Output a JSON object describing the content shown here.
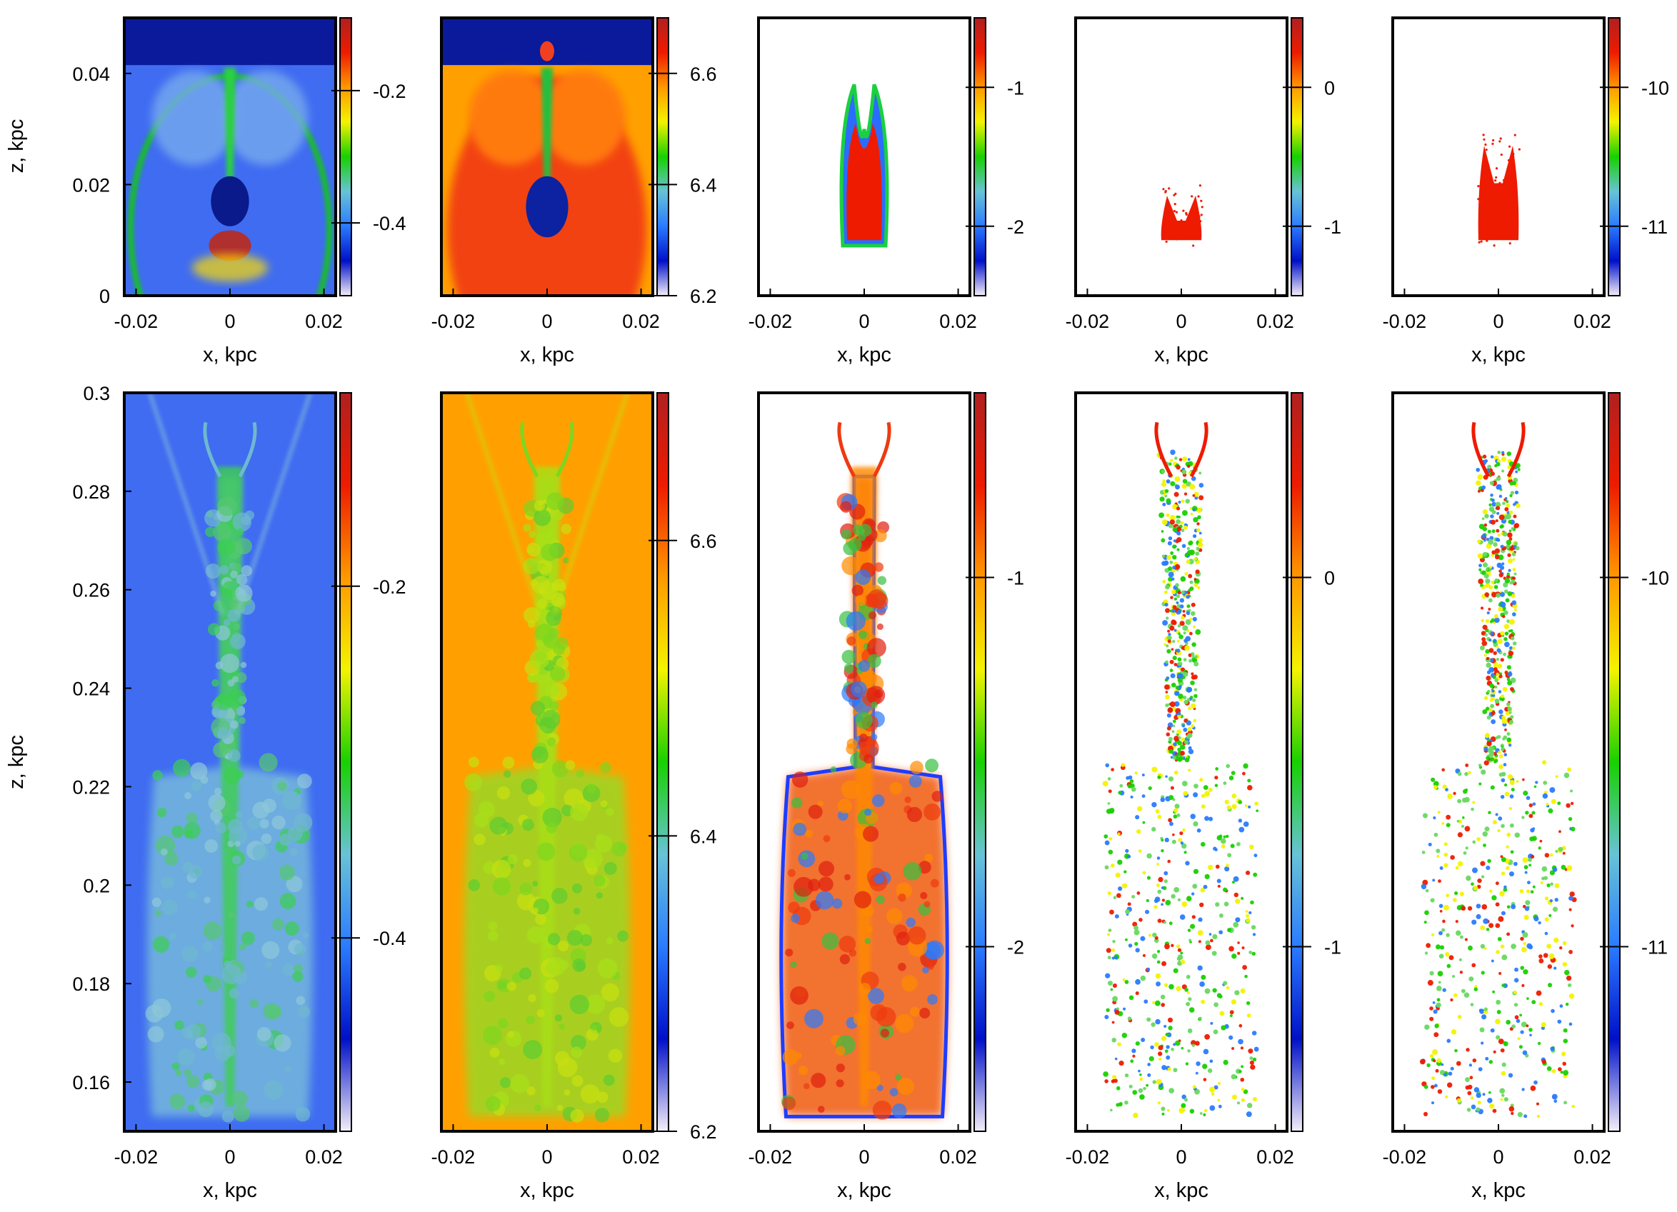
{
  "chart_data": {
    "type": "heatmap",
    "description_layout": "2 rows x 5 columns of 2D color maps",
    "colorbar_palette": [
      "#f4eef8",
      "#0010c8",
      "#2a7bff",
      "#67c3d6",
      "#18d000",
      "#f3f300",
      "#ff9900",
      "#ee1b00",
      "#b02020"
    ],
    "rows": [
      {
        "xlabel": "x, kpc",
        "ylabel": "z, kpc",
        "xticks": [
          "-0.02",
          "0",
          "0.02"
        ],
        "xlim": [
          -0.0225,
          0.0225
        ],
        "ylim": [
          0,
          0.05
        ],
        "yticks": [
          {
            "label": "0",
            "value": 0
          },
          {
            "label": "0.02",
            "value": 0.02
          },
          {
            "label": "0.04",
            "value": 0.04
          }
        ],
        "panels": [
          {
            "field": "panel-1",
            "background": "#3f6cf1",
            "colorbar": {
              "range": [
                -0.51,
                -0.09
              ],
              "ticks": [
                {
                  "label": "-0.2",
                  "value": -0.2
                },
                {
                  "label": "-0.4",
                  "value": -0.4
                }
              ]
            }
          },
          {
            "field": "panel-2",
            "background": "#ffa000",
            "colorbar": {
              "range": [
                6.2,
                6.7
              ],
              "ticks": [
                {
                  "label": "6.6",
                  "value": 6.6
                },
                {
                  "label": "6.4",
                  "value": 6.4
                },
                {
                  "label": "6.2",
                  "value": 6.2
                }
              ]
            }
          },
          {
            "field": "panel-3",
            "background": "#ffffff",
            "colorbar": {
              "range": [
                -2.5,
                -0.5
              ],
              "ticks": [
                {
                  "label": "-1",
                  "value": -1
                },
                {
                  "label": "-2",
                  "value": -2
                }
              ]
            }
          },
          {
            "field": "panel-4",
            "background": "#ffffff",
            "colorbar": {
              "range": [
                -1.5,
                0.5
              ],
              "ticks": [
                {
                  "label": "0",
                  "value": 0
                },
                {
                  "label": "-1",
                  "value": -1
                }
              ]
            }
          },
          {
            "field": "panel-5",
            "background": "#ffffff",
            "colorbar": {
              "range": [
                -11.5,
                -9.5
              ],
              "ticks": [
                {
                  "label": "-10",
                  "value": -10
                },
                {
                  "label": "-11",
                  "value": -11
                }
              ]
            }
          }
        ]
      },
      {
        "xlabel": "x, kpc",
        "ylabel": "z, kpc",
        "xticks": [
          "-0.02",
          "0",
          "0.02"
        ],
        "xlim": [
          -0.0225,
          0.0225
        ],
        "ylim": [
          0.15,
          0.3
        ],
        "yticks": [
          {
            "label": "0.3",
            "value": 0.3
          },
          {
            "label": "0.28",
            "value": 0.28
          },
          {
            "label": "0.26",
            "value": 0.26
          },
          {
            "label": "0.24",
            "value": 0.24
          },
          {
            "label": "0.22",
            "value": 0.22
          },
          {
            "label": "0.2",
            "value": 0.2
          },
          {
            "label": "0.18",
            "value": 0.18
          },
          {
            "label": "0.16",
            "value": 0.16
          }
        ],
        "panels": [
          {
            "field": "panel-1",
            "background": "#3f6cf1",
            "colorbar": {
              "range": [
                -0.51,
                -0.09
              ],
              "ticks": [
                {
                  "label": "-0.2",
                  "value": -0.2
                },
                {
                  "label": "-0.4",
                  "value": -0.4
                }
              ]
            }
          },
          {
            "field": "panel-2",
            "background": "#ffa000",
            "colorbar": {
              "range": [
                6.2,
                6.7
              ],
              "ticks": [
                {
                  "label": "6.6",
                  "value": 6.6
                },
                {
                  "label": "6.4",
                  "value": 6.4
                },
                {
                  "label": "6.2",
                  "value": 6.2
                }
              ]
            }
          },
          {
            "field": "panel-3",
            "background": "#ffffff",
            "colorbar": {
              "range": [
                -2.5,
                -0.5
              ],
              "ticks": [
                {
                  "label": "-1",
                  "value": -1
                },
                {
                  "label": "-2",
                  "value": -2
                }
              ]
            }
          },
          {
            "field": "panel-4",
            "background": "#ffffff",
            "colorbar": {
              "range": [
                -1.5,
                0.5
              ],
              "ticks": [
                {
                  "label": "0",
                  "value": 0
                },
                {
                  "label": "-1",
                  "value": -1
                }
              ]
            }
          },
          {
            "field": "panel-5",
            "background": "#ffffff",
            "colorbar": {
              "range": [
                -11.5,
                -9.5
              ],
              "ticks": [
                {
                  "label": "-10",
                  "value": -10
                },
                {
                  "label": "-11",
                  "value": -11
                }
              ]
            }
          }
        ]
      }
    ]
  }
}
